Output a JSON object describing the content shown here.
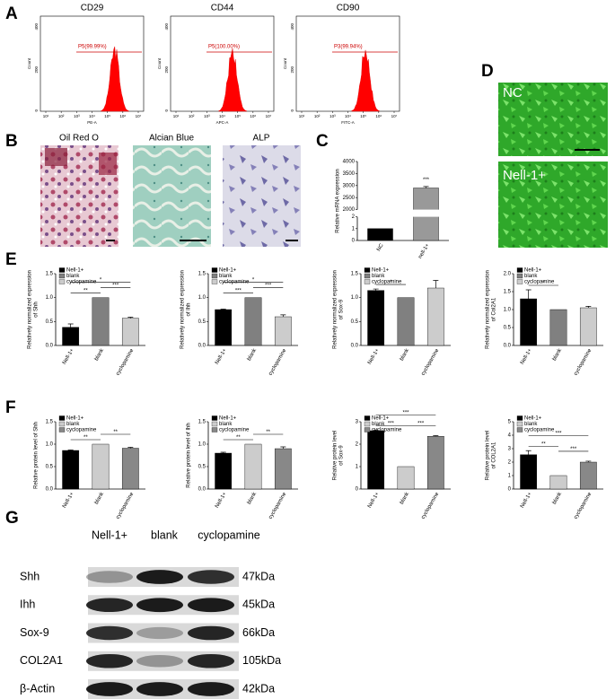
{
  "letters": [
    "A",
    "B",
    "C",
    "D",
    "E",
    "F",
    "G"
  ],
  "flow": {
    "ylabel": "Count",
    "xticks": [
      "10¹",
      "10²",
      "10³",
      "10⁴",
      "10⁵",
      "10⁶",
      "10⁷"
    ],
    "yticks": [
      "0",
      "200",
      "400"
    ],
    "plots": [
      {
        "title": "CD29",
        "gate": "P5(99.99%)",
        "xlabel": "PE-A"
      },
      {
        "title": "CD44",
        "gate": "P5(100.00%)",
        "xlabel": "APC-A"
      },
      {
        "title": "CD90",
        "gate": "P3(99.94%)",
        "xlabel": "FITC-A"
      }
    ]
  },
  "stains": {
    "titles": [
      "Oil Red O",
      "Alcian Blue",
      "ALP"
    ]
  },
  "fluorescence": {
    "labels": [
      "NC",
      "Nell-1+"
    ]
  },
  "blot": {
    "lanes": [
      "Nell-1+",
      "blank",
      "cyclopamine"
    ],
    "rows": [
      {
        "protein": "Shh",
        "size": "47kDa"
      },
      {
        "protein": "Ihh",
        "size": "45kDa"
      },
      {
        "protein": "Sox-9",
        "size": "66kDa"
      },
      {
        "protein": "COL2A1",
        "size": "105kDa"
      },
      {
        "protein": "β-Actin",
        "size": "42kDa"
      }
    ]
  },
  "chart_data": [
    {
      "type": "bar",
      "ylabel": [
        "Relative mRNA expression"
      ],
      "categories": [
        "NC",
        "nell-1+"
      ],
      "values": [
        1,
        2900
      ],
      "errors": [
        0,
        60
      ],
      "colors": [
        "#000000",
        "#999999"
      ],
      "ylim": [
        0,
        4000
      ],
      "axis_break": [
        2,
        2000
      ],
      "yticks": [
        0,
        1,
        2,
        2000,
        2500,
        3000,
        3500,
        4000
      ],
      "significance": [
        {
          "from": "nell-1+",
          "to": "nell-1+",
          "label": "***"
        }
      ],
      "legend": false
    },
    {
      "type": "bar",
      "ylabel": [
        "Relatively normalized expression",
        "of Shh"
      ],
      "categories": [
        "Nell-1+",
        "blank",
        "cyclopamine"
      ],
      "values": [
        0.38,
        1.0,
        0.57
      ],
      "errors": [
        0.07,
        0,
        0.02
      ],
      "colors": [
        "#000000",
        "#808080",
        "#cccccc"
      ],
      "ylim": [
        0,
        1.5
      ],
      "yticks": [
        {
          "value": 0,
          "label": "0.0"
        },
        {
          "value": 0.5,
          "label": "0.5"
        },
        {
          "value": 1,
          "label": "1.0"
        },
        {
          "value": 1.5,
          "label": "1.5"
        }
      ],
      "significance": [
        {
          "from": "Nell-1+",
          "to": "blank",
          "label": "**"
        },
        {
          "from": "blank",
          "to": "cyclopamine",
          "label": "***"
        },
        {
          "from": "Nell-1+",
          "to": "cyclopamine",
          "label": "*"
        }
      ],
      "legend": true
    },
    {
      "type": "bar",
      "ylabel": [
        "Relatively normalized expression",
        "of Ihh"
      ],
      "categories": [
        "Nell-1+",
        "blank",
        "cyclopamine"
      ],
      "values": [
        0.75,
        1.0,
        0.6
      ],
      "errors": [
        0.01,
        0,
        0.04
      ],
      "colors": [
        "#000000",
        "#808080",
        "#cccccc"
      ],
      "ylim": [
        0,
        1.5
      ],
      "yticks": [
        {
          "value": 0,
          "label": "0.0"
        },
        {
          "value": 0.5,
          "label": "0.5"
        },
        {
          "value": 1,
          "label": "1.0"
        },
        {
          "value": 1.5,
          "label": "1.5"
        }
      ],
      "significance": [
        {
          "from": "Nell-1+",
          "to": "blank",
          "label": "***"
        },
        {
          "from": "blank",
          "to": "cyclopamine",
          "label": "***"
        },
        {
          "from": "Nell-1+",
          "to": "cyclopamine",
          "label": "*"
        }
      ],
      "legend": true
    },
    {
      "type": "bar",
      "ylabel": [
        "Relatively normalized expression",
        "of Sox-9"
      ],
      "categories": [
        "Nell-1+",
        "blank",
        "cyclopamine"
      ],
      "values": [
        1.15,
        1.0,
        1.2
      ],
      "errors": [
        0.03,
        0,
        0.16
      ],
      "colors": [
        "#000000",
        "#808080",
        "#cccccc"
      ],
      "ylim": [
        0,
        1.5
      ],
      "yticks": [
        {
          "value": 0,
          "label": "0.0"
        },
        {
          "value": 0.5,
          "label": "0.5"
        },
        {
          "value": 1,
          "label": "1.0"
        },
        {
          "value": 1.5,
          "label": "1.5"
        }
      ],
      "significance": [
        {
          "from": "Nell-1+",
          "to": "blank",
          "label": "*"
        }
      ],
      "legend": true
    },
    {
      "type": "bar",
      "ylabel": [
        "Relatively normalized expression",
        "of Col2A1"
      ],
      "categories": [
        "Nell-1+",
        "blank",
        "cyclopamine"
      ],
      "values": [
        1.3,
        1.0,
        1.05
      ],
      "errors": [
        0.25,
        0,
        0.04
      ],
      "colors": [
        "#000000",
        "#808080",
        "#cccccc"
      ],
      "ylim": [
        0,
        2
      ],
      "yticks": [
        {
          "value": 0,
          "label": "0.0"
        },
        {
          "value": 0.5,
          "label": "0.5"
        },
        {
          "value": 1,
          "label": "1.0"
        },
        {
          "value": 1.5,
          "label": "1.5"
        },
        {
          "value": 2,
          "label": "2.0"
        }
      ],
      "significance": [
        {
          "from": "Nell-1+",
          "to": "blank",
          "label": "*"
        }
      ],
      "legend": true
    },
    {
      "type": "bar",
      "ylabel": [
        "Relative protein level of Shh"
      ],
      "categories": [
        "Nell-1+",
        "blank",
        "cyclopamine"
      ],
      "values": [
        0.86,
        1.0,
        0.91
      ],
      "errors": [
        0.01,
        0,
        0.02
      ],
      "colors": [
        "#000000",
        "#cccccc",
        "#888888"
      ],
      "ylim": [
        0,
        1.5
      ],
      "yticks": [
        {
          "value": 0,
          "label": "0.0"
        },
        {
          "value": 0.5,
          "label": "0.5"
        },
        {
          "value": 1,
          "label": "1.0"
        },
        {
          "value": 1.5,
          "label": "1.5"
        }
      ],
      "significance": [
        {
          "from": "Nell-1+",
          "to": "blank",
          "label": "**"
        },
        {
          "from": "blank",
          "to": "cyclopamine",
          "label": "**"
        }
      ],
      "legend": true
    },
    {
      "type": "bar",
      "ylabel": [
        "Relative protein level of Ihh"
      ],
      "categories": [
        "Nell-1+",
        "blank",
        "cyclopamine"
      ],
      "values": [
        0.8,
        1.0,
        0.9
      ],
      "errors": [
        0.02,
        0,
        0.04
      ],
      "colors": [
        "#000000",
        "#cccccc",
        "#888888"
      ],
      "ylim": [
        0,
        1.5
      ],
      "yticks": [
        {
          "value": 0,
          "label": "0.0"
        },
        {
          "value": 0.5,
          "label": "0.5"
        },
        {
          "value": 1,
          "label": "1.0"
        },
        {
          "value": 1.5,
          "label": "1.5"
        }
      ],
      "significance": [
        {
          "from": "Nell-1+",
          "to": "blank",
          "label": "**"
        },
        {
          "from": "blank",
          "to": "cyclopamine",
          "label": "**"
        }
      ],
      "legend": true
    },
    {
      "type": "bar",
      "ylabel": [
        "Relative protein level",
        "of Sox-9"
      ],
      "categories": [
        "Nell-1+",
        "blank",
        "cyclopamine"
      ],
      "values": [
        2.6,
        1.0,
        2.35
      ],
      "errors": [
        0.03,
        0,
        0.03
      ],
      "colors": [
        "#000000",
        "#cccccc",
        "#888888"
      ],
      "ylim": [
        0,
        3
      ],
      "yticks": [
        0,
        1,
        2,
        3
      ],
      "significance": [
        {
          "from": "Nell-1+",
          "to": "blank",
          "label": "***"
        },
        {
          "from": "blank",
          "to": "cyclopamine",
          "label": "***"
        },
        {
          "from": "Nell-1+",
          "to": "cyclopamine",
          "label": "***"
        }
      ],
      "legend": true
    },
    {
      "type": "bar",
      "ylabel": [
        "Relative protein level",
        "of COL2A1"
      ],
      "categories": [
        "Nell-1+",
        "blank",
        "cyclopamine"
      ],
      "values": [
        2.55,
        1.0,
        2.0
      ],
      "errors": [
        0.3,
        0,
        0.07
      ],
      "colors": [
        "#000000",
        "#cccccc",
        "#888888"
      ],
      "ylim": [
        0,
        5
      ],
      "yticks": [
        0,
        1,
        2,
        3,
        4,
        5
      ],
      "significance": [
        {
          "from": "Nell-1+",
          "to": "blank",
          "label": "**"
        },
        {
          "from": "blank",
          "to": "cyclopamine",
          "label": "***"
        },
        {
          "from": "Nell-1+",
          "to": "cyclopamine",
          "label": "***"
        }
      ],
      "legend": true
    }
  ]
}
